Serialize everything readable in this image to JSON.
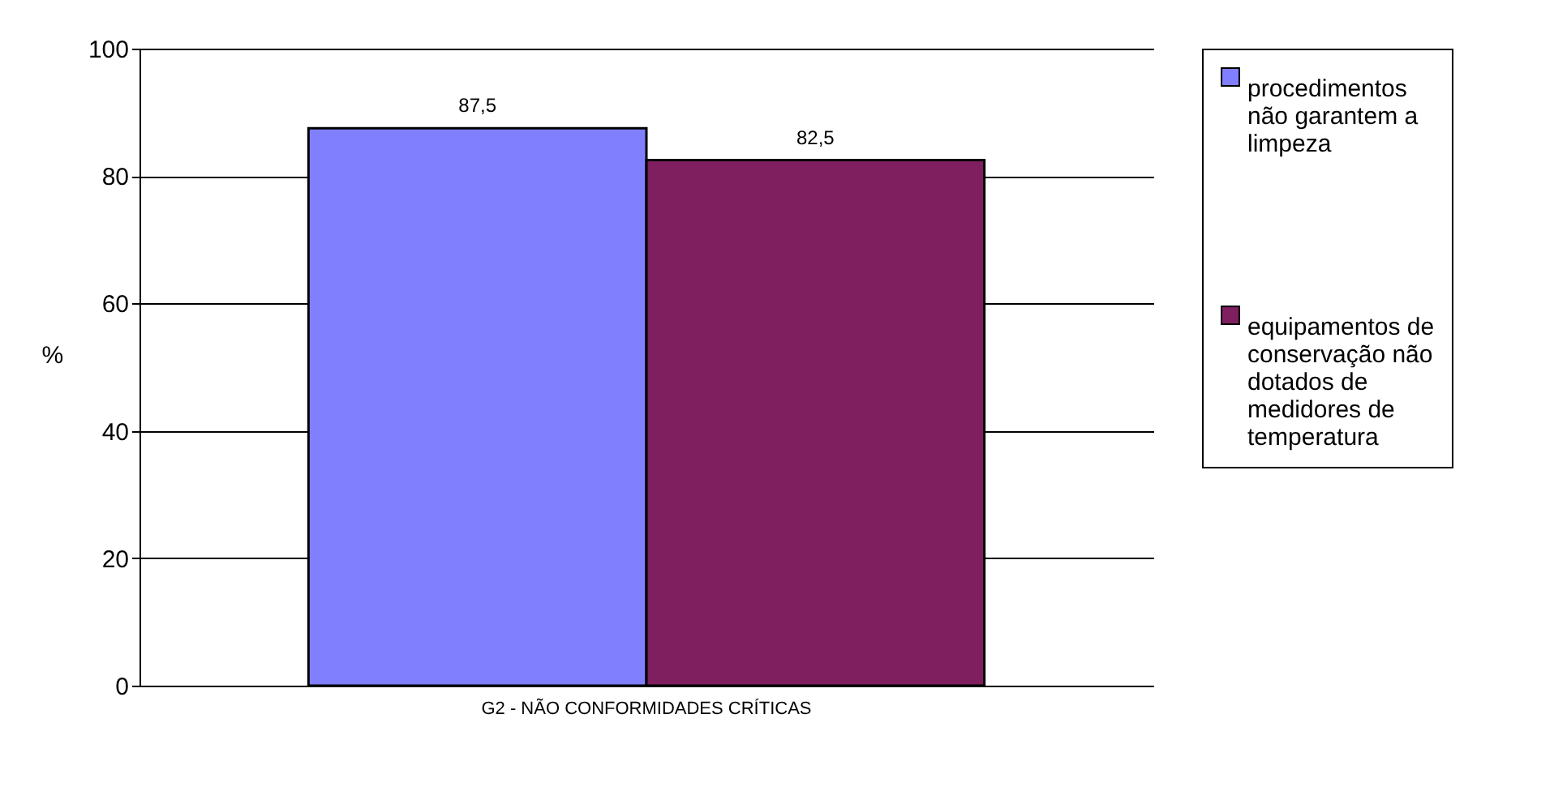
{
  "chart_data": {
    "type": "bar",
    "ylabel": "%",
    "categories": [
      "G2 - NÃO CONFORMIDADES CRÍTICAS"
    ],
    "series": [
      {
        "name": "procedimentos não garantem a limpeza",
        "color": "#8080ff",
        "values": [
          87.5
        ],
        "value_labels": [
          "87,5"
        ]
      },
      {
        "name": "equipamentos de conservação não dotados de medidores de temperatura",
        "color": "#7f1f5f",
        "values": [
          82.5
        ],
        "value_labels": [
          "82,5"
        ]
      }
    ],
    "ylim": [
      0,
      100
    ],
    "yticks": [
      0,
      20,
      40,
      60,
      80,
      100
    ],
    "grid": "y",
    "legend": "right"
  }
}
